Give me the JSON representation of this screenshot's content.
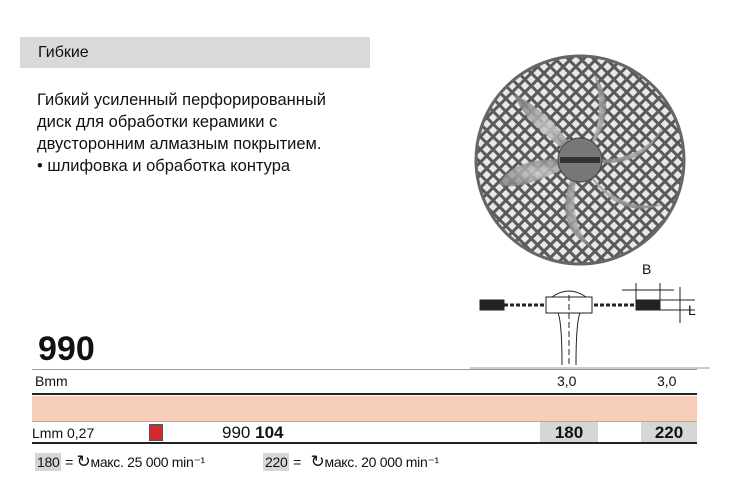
{
  "category": "Гибкие",
  "description": [
    "Гибкий усиленный перфорированный",
    "диск для обработки керамики с",
    "двусторонним алмазным покрытием.",
    "• шлифовка и обработка контура"
  ],
  "product_number": "990",
  "diagram": {
    "label_b": "B",
    "label_l": "L"
  },
  "table": {
    "b_label": "Bmm",
    "b_values": [
      "3,0",
      "3,0"
    ],
    "l_label": "Lmm 0,27",
    "color_code": "#d42a2f",
    "article_prefix": "990",
    "article_suffix": "104",
    "shank_codes": [
      "180",
      "220"
    ]
  },
  "footer": [
    {
      "code": "180",
      "eq": "=",
      "text": "макс. 25 000 min⁻¹"
    },
    {
      "code": "220",
      "eq": "=",
      "text": "макс. 20 000 min⁻¹"
    }
  ],
  "colors": {
    "band": "#f7cdbc",
    "header": "#d9d9d9",
    "cell": "#d6d6d6"
  }
}
